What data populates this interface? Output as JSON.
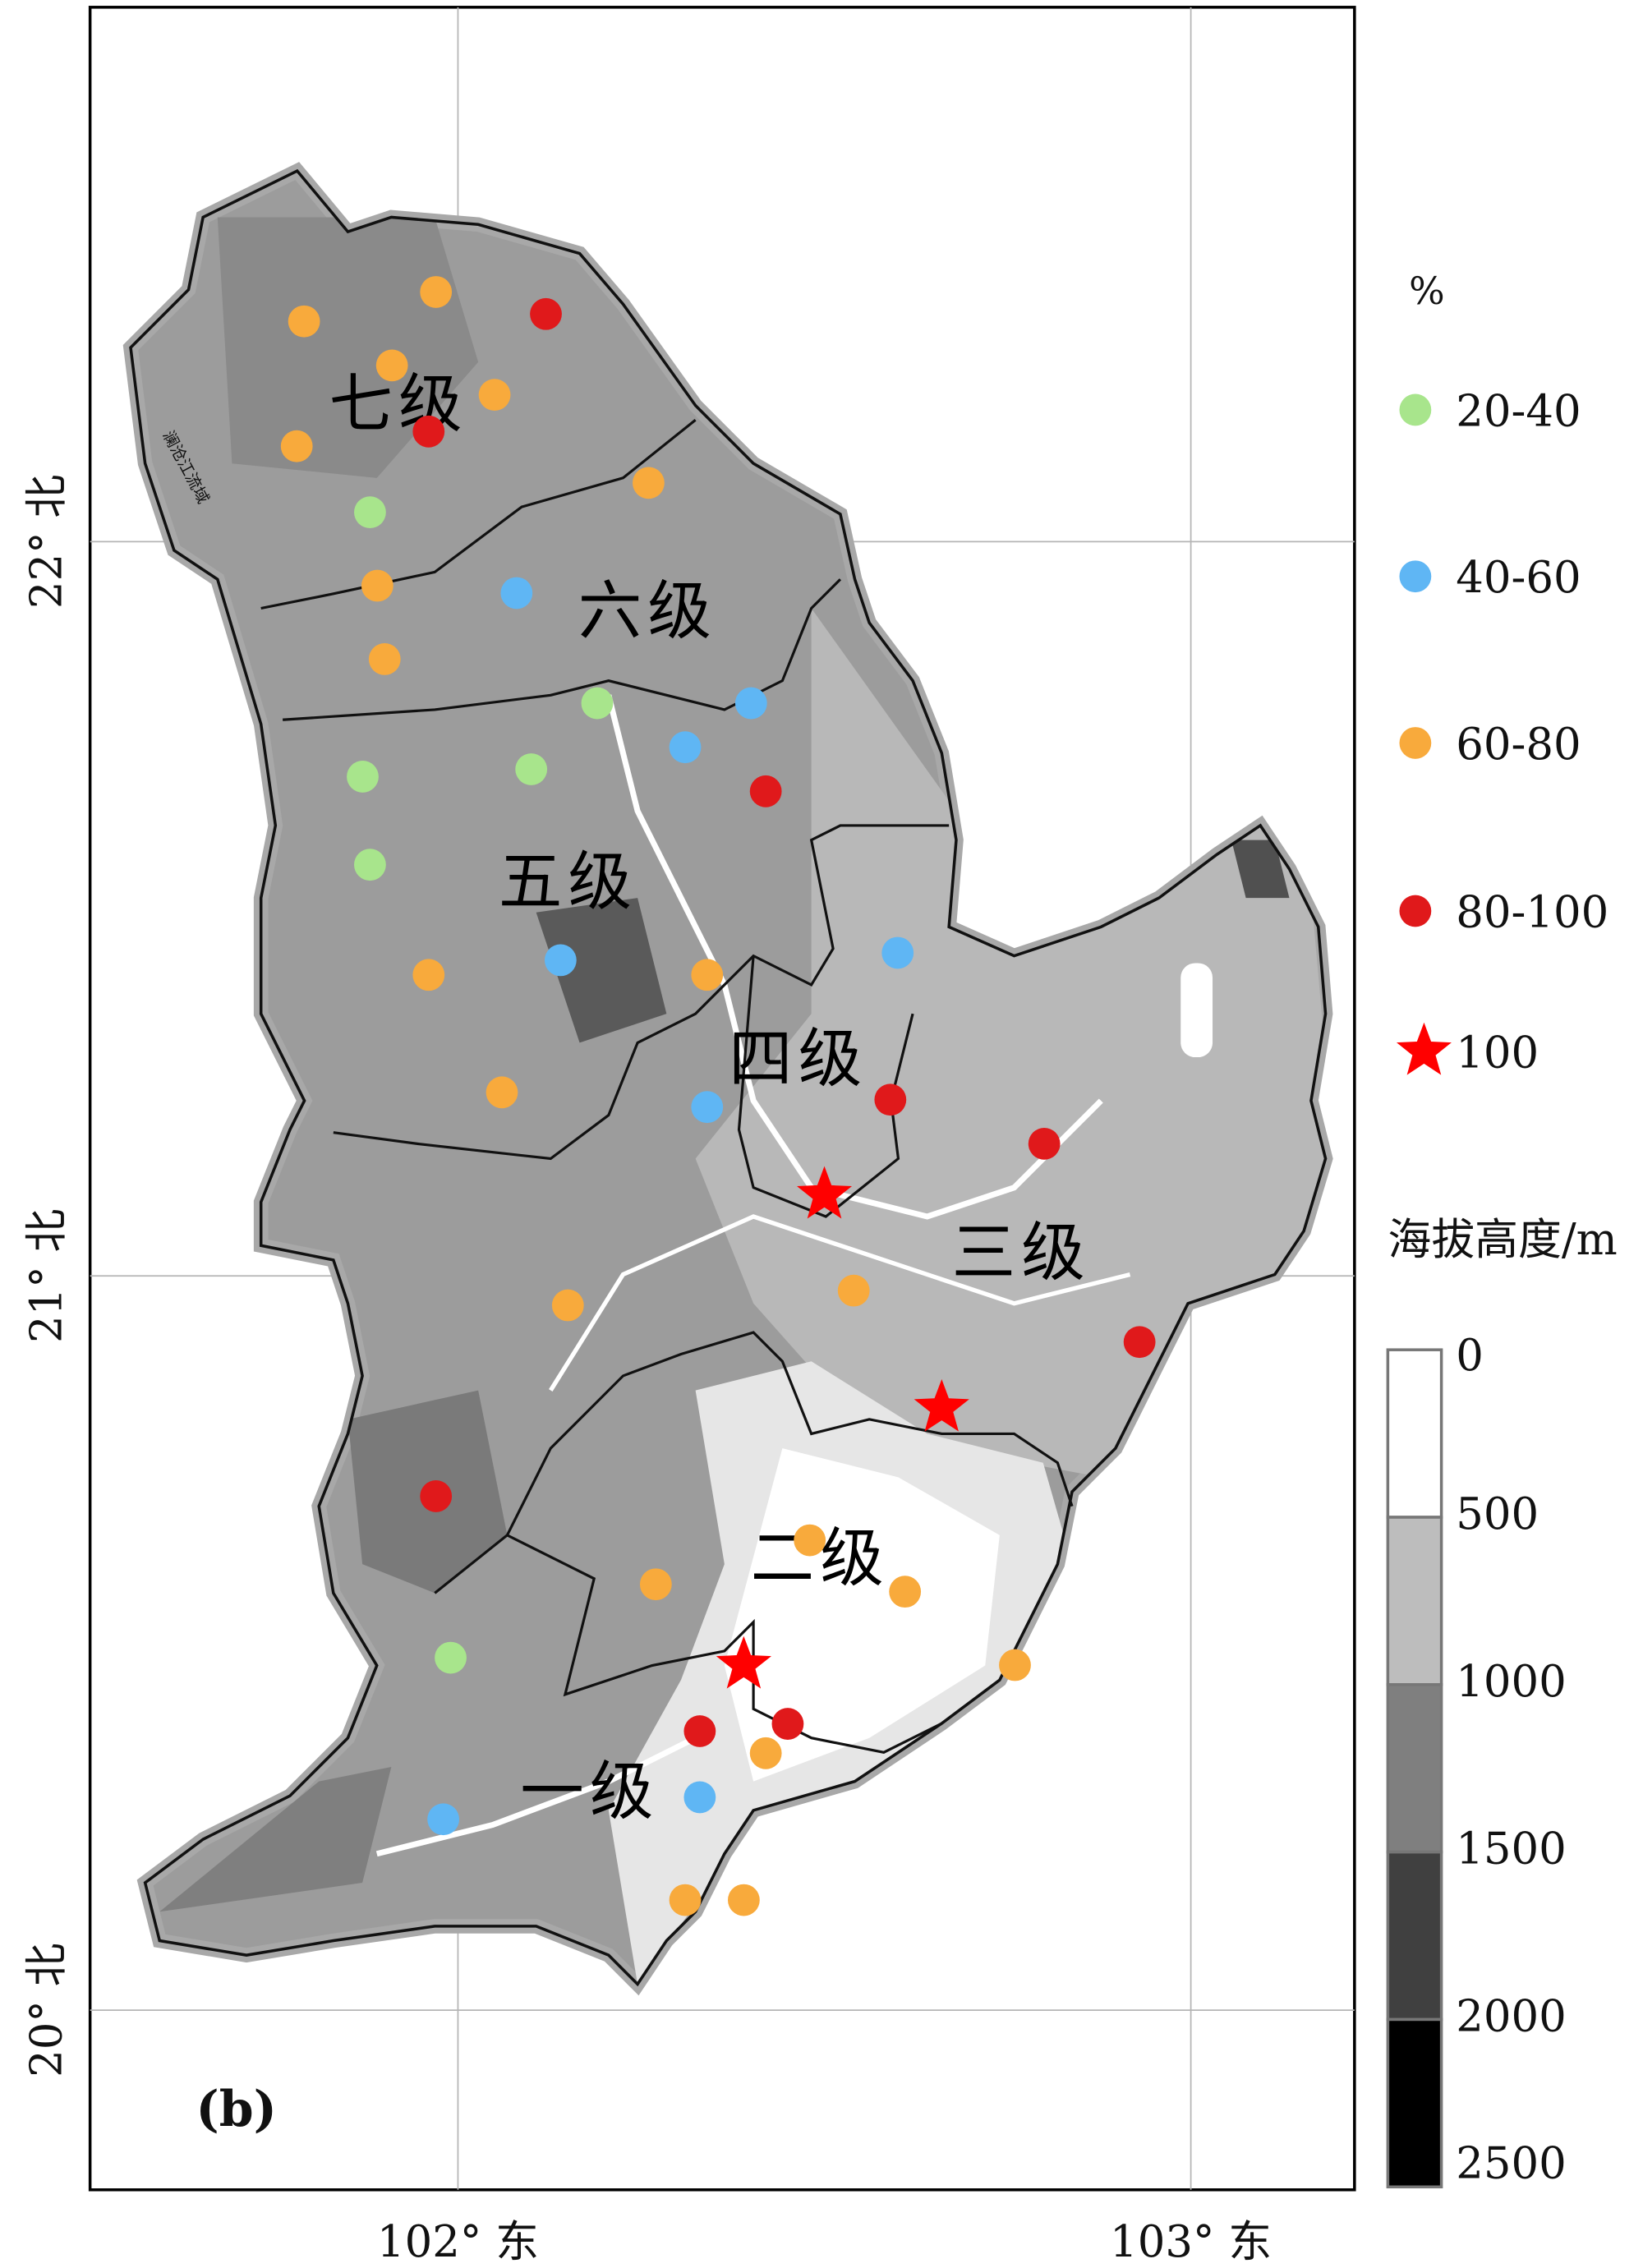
{
  "panel_label": "(b)",
  "basin_label": "澜沧江流域",
  "axes": {
    "x_ticks": [
      "102° 东",
      "103° 东"
    ],
    "y_ticks": [
      "22° 北",
      "21° 北",
      "20° 北"
    ],
    "lon_range": [
      101.5,
      103.23
    ],
    "lat_range": [
      19.75,
      22.72
    ]
  },
  "regions": [
    "一级",
    "二级",
    "三级",
    "四级",
    "五级",
    "六级",
    "七级"
  ],
  "legend_points": {
    "title": "%",
    "items": [
      {
        "label": "20-40",
        "class": "c20",
        "color": "#a8e58c"
      },
      {
        "label": "40-60",
        "class": "c40",
        "color": "#5fb6f4"
      },
      {
        "label": "60-80",
        "class": "c60",
        "color": "#f8aa3c"
      },
      {
        "label": "80-100",
        "class": "c80",
        "color": "#e0191b"
      },
      {
        "label": "100",
        "class": "c100",
        "color": "#ff0000",
        "shape": "star"
      }
    ]
  },
  "legend_elevation": {
    "title": "海拔高度/m",
    "breaks": [
      "0",
      "500",
      "1000",
      "1500",
      "2000",
      "2500"
    ],
    "colors": [
      "#ffffff",
      "#bdbdbd",
      "#7f7f7f",
      "#404040",
      "#000000"
    ]
  },
  "stations": [
    {
      "lon": 101.97,
      "lat": 22.34,
      "class": "c60"
    },
    {
      "lon": 101.79,
      "lat": 22.3,
      "class": "c60"
    },
    {
      "lon": 101.91,
      "lat": 22.24,
      "class": "c60"
    },
    {
      "lon": 102.05,
      "lat": 22.2,
      "class": "c60"
    },
    {
      "lon": 101.78,
      "lat": 22.13,
      "class": "c60"
    },
    {
      "lon": 102.26,
      "lat": 22.08,
      "class": "c60"
    },
    {
      "lon": 101.89,
      "lat": 21.94,
      "class": "c60"
    },
    {
      "lon": 101.9,
      "lat": 21.84,
      "class": "c60"
    },
    {
      "lon": 101.96,
      "lat": 21.41,
      "class": "c60"
    },
    {
      "lon": 102.34,
      "lat": 21.41,
      "class": "c60"
    },
    {
      "lon": 102.06,
      "lat": 21.25,
      "class": "c60"
    },
    {
      "lon": 102.15,
      "lat": 20.96,
      "class": "c60"
    },
    {
      "lon": 102.54,
      "lat": 20.98,
      "class": "c60"
    },
    {
      "lon": 102.48,
      "lat": 20.64,
      "class": "c60"
    },
    {
      "lon": 102.27,
      "lat": 20.58,
      "class": "c60"
    },
    {
      "lon": 102.61,
      "lat": 20.57,
      "class": "c60"
    },
    {
      "lon": 102.76,
      "lat": 20.47,
      "class": "c60"
    },
    {
      "lon": 102.42,
      "lat": 20.35,
      "class": "c60"
    },
    {
      "lon": 102.31,
      "lat": 20.15,
      "class": "c60"
    },
    {
      "lon": 102.39,
      "lat": 20.15,
      "class": "c60"
    },
    {
      "lon": 102.12,
      "lat": 22.31,
      "class": "c80"
    },
    {
      "lon": 101.96,
      "lat": 22.15,
      "class": "c80"
    },
    {
      "lon": 102.42,
      "lat": 21.66,
      "class": "c80"
    },
    {
      "lon": 102.59,
      "lat": 21.24,
      "class": "c80"
    },
    {
      "lon": 102.8,
      "lat": 21.18,
      "class": "c80"
    },
    {
      "lon": 102.93,
      "lat": 20.91,
      "class": "c80"
    },
    {
      "lon": 101.97,
      "lat": 20.7,
      "class": "c80"
    },
    {
      "lon": 102.33,
      "lat": 20.38,
      "class": "c80"
    },
    {
      "lon": 102.45,
      "lat": 20.39,
      "class": "c80"
    },
    {
      "lon": 101.88,
      "lat": 22.04,
      "class": "c20"
    },
    {
      "lon": 102.19,
      "lat": 21.78,
      "class": "c20"
    },
    {
      "lon": 101.87,
      "lat": 21.68,
      "class": "c20"
    },
    {
      "lon": 102.1,
      "lat": 21.69,
      "class": "c20"
    },
    {
      "lon": 101.88,
      "lat": 21.56,
      "class": "c20"
    },
    {
      "lon": 101.99,
      "lat": 20.48,
      "class": "c20"
    },
    {
      "lon": 102.08,
      "lat": 21.93,
      "class": "c40"
    },
    {
      "lon": 102.4,
      "lat": 21.78,
      "class": "c40"
    },
    {
      "lon": 102.31,
      "lat": 21.72,
      "class": "c40"
    },
    {
      "lon": 102.6,
      "lat": 21.44,
      "class": "c40"
    },
    {
      "lon": 102.14,
      "lat": 21.43,
      "class": "c40"
    },
    {
      "lon": 102.34,
      "lat": 21.23,
      "class": "c40"
    },
    {
      "lon": 102.33,
      "lat": 20.29,
      "class": "c40"
    },
    {
      "lon": 101.98,
      "lat": 20.26,
      "class": "c40"
    },
    {
      "lon": 102.5,
      "lat": 21.11,
      "class": "c100"
    },
    {
      "lon": 102.66,
      "lat": 20.82,
      "class": "c100"
    },
    {
      "lon": 102.39,
      "lat": 20.47,
      "class": "c100"
    }
  ]
}
